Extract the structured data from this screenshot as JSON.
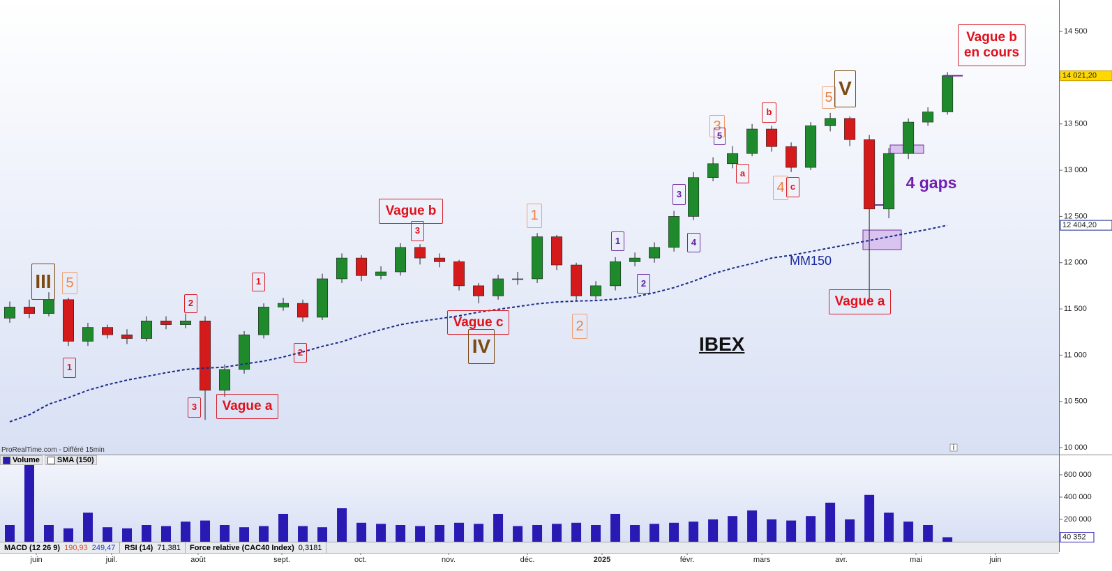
{
  "chart_data": [
    {
      "type": "candlestick",
      "title": "IBEX",
      "categories": [
        null,
        null,
        null,
        null,
        null,
        null,
        null,
        null,
        null,
        null,
        null,
        null,
        null,
        null,
        null,
        null,
        null,
        null,
        null,
        null,
        null,
        null,
        null,
        null,
        null,
        null,
        null,
        null,
        null,
        null,
        null,
        null,
        null,
        null,
        null,
        null,
        null,
        null,
        null,
        null,
        null,
        null,
        null,
        null,
        null,
        null,
        null,
        null,
        null
      ],
      "open": [
        11400,
        11520,
        11450,
        11600,
        11150,
        11300,
        11220,
        11180,
        11370,
        11330,
        11370,
        10620,
        10845,
        11220,
        11520,
        11560,
        11410,
        11825,
        12050,
        11860,
        11900,
        12165,
        12050,
        12010,
        11750,
        11640,
        11825,
        11825,
        12280,
        11975,
        11640,
        11750,
        12010,
        12050,
        12165,
        12500,
        12920,
        13070,
        13180,
        13445,
        13255,
        13030,
        13480,
        13560,
        13330,
        12580,
        13180,
        13520,
        13630
      ],
      "high": [
        11580,
        11600,
        11680,
        11620,
        11350,
        11330,
        11280,
        11420,
        11420,
        11450,
        11420,
        10900,
        11260,
        11560,
        11620,
        11600,
        11880,
        12100,
        12080,
        11960,
        12210,
        12200,
        12100,
        12030,
        11780,
        11870,
        11900,
        12320,
        12300,
        12000,
        11800,
        12060,
        12110,
        12220,
        12560,
        12980,
        13140,
        13260,
        13500,
        13480,
        13300,
        13520,
        13620,
        13580,
        13380,
        13240,
        13560,
        13680,
        14060
      ],
      "low": [
        11350,
        11400,
        11420,
        11100,
        11100,
        11180,
        11120,
        11150,
        11280,
        11290,
        10300,
        10550,
        10800,
        11180,
        11480,
        11360,
        11380,
        11780,
        11800,
        11820,
        11860,
        11980,
        11950,
        11700,
        11560,
        11600,
        11760,
        11780,
        11920,
        11580,
        11600,
        11700,
        11960,
        12000,
        12120,
        12460,
        12880,
        13020,
        13150,
        13200,
        12980,
        13000,
        13420,
        13260,
        11580,
        12480,
        13120,
        13480,
        13600
      ],
      "close": [
        11520,
        11450,
        11600,
        11150,
        11300,
        11220,
        11180,
        11370,
        11330,
        11370,
        10620,
        10845,
        11220,
        11520,
        11560,
        11410,
        11825,
        12050,
        11860,
        11900,
        12165,
        12050,
        12010,
        11750,
        11640,
        11825,
        11825,
        12280,
        11975,
        11640,
        11750,
        12010,
        12050,
        12165,
        12500,
        12920,
        13070,
        13180,
        13445,
        13255,
        13030,
        13480,
        13560,
        13330,
        12580,
        13180,
        13520,
        13630,
        14021.2
      ],
      "up_color": "#1f8a2c",
      "down_color": "#d41a1a",
      "series": [
        {
          "name": "MM150",
          "color": "#1a2a8a",
          "values": [
            10280,
            10355,
            10470,
            10540,
            10620,
            10680,
            10730,
            10770,
            10810,
            10845,
            10860,
            10870,
            10905,
            10935,
            10980,
            11035,
            11095,
            11145,
            11215,
            11275,
            11330,
            11365,
            11395,
            11425,
            11465,
            11495,
            11525,
            11555,
            11575,
            11585,
            11590,
            11605,
            11630,
            11675,
            11730,
            11800,
            11880,
            11940,
            11990,
            12050,
            12080,
            12120,
            12160,
            12200,
            12240,
            12280,
            12320,
            12360,
            12404.2
          ]
        }
      ],
      "last_price": {
        "value": 14021.2,
        "label": "14 021,20"
      },
      "ma_last": {
        "value": 12404.2,
        "label": "12 404,20"
      },
      "xlim": [
        -0.5,
        53.71
      ],
      "ylim": [
        9940,
        14840
      ],
      "yticks": [
        {
          "value": 10000,
          "label": "10 000"
        },
        {
          "value": 10500,
          "label": "10 500"
        },
        {
          "value": 11000,
          "label": "11 000"
        },
        {
          "value": 11500,
          "label": "11 500"
        },
        {
          "value": 12000,
          "label": "12 000"
        },
        {
          "value": 12500,
          "label": "12 500"
        },
        {
          "value": 13000,
          "label": "13 000"
        },
        {
          "value": 13500,
          "label": "13 500"
        },
        {
          "value": 14000,
          "label": "14 000"
        },
        {
          "value": 14500,
          "label": "14 500"
        }
      ]
    },
    {
      "type": "bar",
      "categories": [
        null,
        null,
        null,
        null,
        null,
        null,
        null,
        null,
        null,
        null,
        null,
        null,
        null,
        null,
        null,
        null,
        null,
        null,
        null,
        null,
        null,
        null,
        null,
        null,
        null,
        null,
        null,
        null,
        null,
        null,
        null,
        null,
        null,
        null,
        null,
        null,
        null,
        null,
        null,
        null,
        null,
        null,
        null,
        null,
        null,
        null,
        null,
        null,
        null
      ],
      "series": [
        {
          "name": "Volume",
          "color": "#2a1ab4",
          "values": [
            150000,
            700000,
            150000,
            120000,
            260000,
            130000,
            120000,
            150000,
            140000,
            180000,
            190000,
            150000,
            130000,
            140000,
            250000,
            140000,
            130000,
            300000,
            170000,
            160000,
            150000,
            140000,
            150000,
            170000,
            160000,
            250000,
            140000,
            150000,
            160000,
            170000,
            150000,
            250000,
            150000,
            160000,
            170000,
            180000,
            200000,
            230000,
            280000,
            200000,
            190000,
            230000,
            350000,
            200000,
            420000,
            260000,
            180000,
            150000,
            40352
          ]
        },
        {
          "name": "SMA (150)",
          "color": "#ffffff"
        }
      ],
      "last_volume": {
        "value": 40352,
        "label": "40 352"
      },
      "xlim": [
        -0.5,
        53.71
      ],
      "ylim": [
        0,
        750000
      ],
      "yticks": [
        {
          "value": 200000,
          "label": "200 000"
        },
        {
          "value": 400000,
          "label": "400 000"
        },
        {
          "value": 600000,
          "label": "600 000"
        }
      ],
      "xticks": [
        {
          "value": 1.36,
          "label": "juin"
        },
        {
          "value": 5.21,
          "label": "juil."
        },
        {
          "value": 9.64,
          "label": "août"
        },
        {
          "value": 13.93,
          "label": "sept."
        },
        {
          "value": 17.96,
          "label": "oct."
        },
        {
          "value": 22.46,
          "label": "nov."
        },
        {
          "value": 26.5,
          "label": "déc."
        },
        {
          "value": 30.32,
          "label": "2025"
        },
        {
          "value": 34.68,
          "label": "févr."
        },
        {
          "value": 38.5,
          "label": "mars"
        },
        {
          "value": 42.57,
          "label": "avr."
        },
        {
          "value": 46.39,
          "label": "mai"
        },
        {
          "value": 50.46,
          "label": "juin"
        }
      ]
    }
  ],
  "source": "ProRealTime.com - Différé 15min",
  "indicators": [
    {
      "name": "MACD (12 26 9)",
      "values": [
        {
          "value": 190.93,
          "label": "190,93"
        },
        {
          "value": 249.47,
          "label": "249,47"
        }
      ]
    },
    {
      "name": "RSI (14)",
      "values": [
        {
          "value": 71.381,
          "label": "71,381"
        }
      ]
    },
    {
      "name": "Force relative (CAC40 Index)",
      "values": [
        {
          "value": 0.3181,
          "label": "0,3181"
        }
      ]
    }
  ],
  "annotations": [
    "Vague b en cours",
    "Vague b",
    "Vague c",
    "Vague a",
    "Vague a",
    "1",
    "2",
    "1",
    "3",
    "2",
    "3",
    "b",
    "a",
    "c",
    "5",
    "1",
    "2",
    "3",
    "4",
    "5",
    "5",
    "3",
    "4",
    "1",
    "2",
    "III",
    "IV",
    "V",
    "4 gaps",
    "MM150"
  ]
}
